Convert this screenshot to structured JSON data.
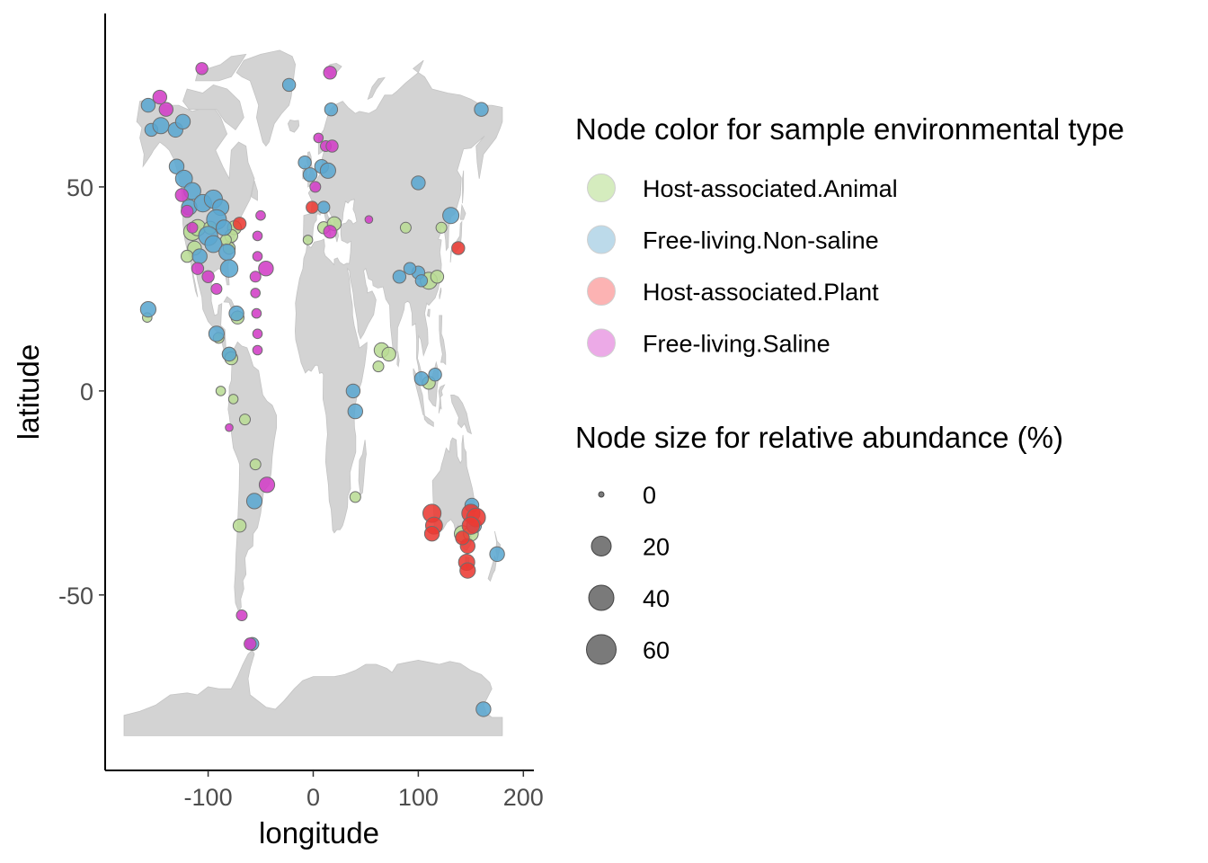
{
  "chart_data": {
    "type": "scatter",
    "subtype": "world map bubble plot",
    "xlabel": "longitude",
    "ylabel": "latitude",
    "xlim": [
      -198,
      210
    ],
    "ylim": [
      -93,
      92.5
    ],
    "xticks": [
      -100,
      0,
      100,
      200
    ],
    "xtick_labels": [
      "-100",
      "0",
      "100",
      "200"
    ],
    "yticks": [
      -50,
      0,
      50
    ],
    "ytick_labels": [
      "-50",
      "0",
      "50"
    ],
    "grid": false,
    "land_color": "#d3d3d3",
    "legend_position": "right",
    "color_legend": {
      "title": "Node color for sample environmental type",
      "entries": [
        {
          "label": "Host-associated.Animal",
          "color": "#c7e5a8"
        },
        {
          "label": "Free-living.Non-saline",
          "color": "#a6cee3"
        },
        {
          "label": "Host-associated.Plant",
          "color": "#fb9a99"
        },
        {
          "label": "Free-living.Saline",
          "color": "#e58ddf"
        }
      ]
    },
    "size_legend": {
      "title": "Node size for relative abundance (%)",
      "entries": [
        {
          "label": "0",
          "value": 0
        },
        {
          "label": "20",
          "value": 20
        },
        {
          "label": "40",
          "value": 40
        },
        {
          "label": "60",
          "value": 60
        }
      ]
    },
    "series": [
      {
        "name": "Host-associated.Animal",
        "fill": "#b9dc95",
        "points": [
          [
            -115,
            39,
            22
          ],
          [
            -110,
            40,
            18
          ],
          [
            -113,
            35,
            12
          ],
          [
            -120,
            33,
            8
          ],
          [
            -98,
            40,
            10
          ],
          [
            -75,
            40,
            12
          ],
          [
            -78,
            38,
            10
          ],
          [
            -80,
            35,
            8
          ],
          [
            -83,
            37,
            6
          ],
          [
            -72,
            18,
            10
          ],
          [
            -80,
            9,
            12
          ],
          [
            -78,
            8,
            10
          ],
          [
            -90,
            13,
            6
          ],
          [
            -88,
            0,
            4
          ],
          [
            -76,
            -2,
            4
          ],
          [
            -65,
            -7,
            6
          ],
          [
            -55,
            -18,
            6
          ],
          [
            -70,
            -33,
            10
          ],
          [
            -158,
            18,
            4
          ],
          [
            10,
            40,
            8
          ],
          [
            20,
            41,
            12
          ],
          [
            -5,
            37,
            4
          ],
          [
            40,
            -26,
            6
          ],
          [
            65,
            10,
            14
          ],
          [
            72,
            9,
            12
          ],
          [
            62,
            6,
            6
          ],
          [
            110,
            27,
            20
          ],
          [
            88,
            40,
            6
          ],
          [
            122,
            40,
            6
          ],
          [
            142,
            -35,
            18
          ],
          [
            150,
            -35,
            14
          ],
          [
            110,
            2,
            10
          ],
          [
            118,
            28,
            10
          ]
        ]
      },
      {
        "name": "Free-living.Non-saline",
        "fill": "#5ba7d0",
        "points": [
          [
            -157,
            70,
            12
          ],
          [
            -154,
            64,
            10
          ],
          [
            -145,
            65,
            18
          ],
          [
            -131,
            64,
            14
          ],
          [
            -130,
            55,
            14
          ],
          [
            -123,
            52,
            20
          ],
          [
            -115,
            49,
            20
          ],
          [
            -118,
            45,
            16
          ],
          [
            -105,
            46,
            22
          ],
          [
            -95,
            47,
            24
          ],
          [
            -88,
            45,
            18
          ],
          [
            -92,
            42,
            30
          ],
          [
            -100,
            38,
            28
          ],
          [
            -108,
            33,
            14
          ],
          [
            -95,
            36,
            20
          ],
          [
            -82,
            34,
            18
          ],
          [
            -80,
            30,
            22
          ],
          [
            -85,
            40,
            16
          ],
          [
            -92,
            14,
            16
          ],
          [
            -80,
            9,
            12
          ],
          [
            -73,
            19,
            14
          ],
          [
            -157,
            20,
            16
          ],
          [
            -23,
            75,
            10
          ],
          [
            17,
            69,
            10
          ],
          [
            -8,
            56,
            10
          ],
          [
            -3,
            53,
            12
          ],
          [
            8,
            55,
            12
          ],
          [
            14,
            54,
            16
          ],
          [
            10,
            45,
            8
          ],
          [
            100,
            51,
            12
          ],
          [
            131,
            43,
            18
          ],
          [
            160,
            69,
            12
          ],
          [
            100,
            29,
            10
          ],
          [
            103,
            27,
            8
          ],
          [
            82,
            28,
            10
          ],
          [
            92,
            30,
            8
          ],
          [
            103,
            3,
            12
          ],
          [
            116,
            4,
            10
          ],
          [
            38,
            0,
            12
          ],
          [
            40,
            -5,
            14
          ],
          [
            -56,
            -27,
            16
          ],
          [
            -124,
            66,
            14
          ],
          [
            151,
            -28,
            12
          ],
          [
            153,
            -33,
            14
          ],
          [
            175,
            -40,
            14
          ],
          [
            162,
            -78,
            14
          ],
          [
            -58,
            -62,
            10
          ]
        ]
      },
      {
        "name": "Host-associated.Plant",
        "fill": "#ea3a33",
        "points": [
          [
            -70,
            41,
            10
          ],
          [
            -1,
            45,
            8
          ],
          [
            138,
            35,
            10
          ],
          [
            113,
            -30,
            24
          ],
          [
            115,
            -33,
            20
          ],
          [
            113,
            -35,
            14
          ],
          [
            150,
            -30,
            24
          ],
          [
            155,
            -31,
            26
          ],
          [
            150,
            -33,
            22
          ],
          [
            147,
            -38,
            14
          ],
          [
            146,
            -42,
            18
          ],
          [
            147,
            -44,
            16
          ],
          [
            142,
            -36,
            12
          ]
        ]
      },
      {
        "name": "Free-living.Saline",
        "fill": "#d13ec6",
        "points": [
          [
            -106,
            79,
            8
          ],
          [
            16,
            78,
            10
          ],
          [
            -140,
            69,
            12
          ],
          [
            -125,
            48,
            10
          ],
          [
            -120,
            44,
            8
          ],
          [
            -115,
            40,
            6
          ],
          [
            -110,
            30,
            8
          ],
          [
            -100,
            28,
            8
          ],
          [
            -92,
            25,
            6
          ],
          [
            -50,
            43,
            4
          ],
          [
            -53,
            38,
            4
          ],
          [
            -53,
            33,
            4
          ],
          [
            -55,
            28,
            6
          ],
          [
            -55,
            24,
            4
          ],
          [
            -54,
            19,
            4
          ],
          [
            -53,
            14,
            4
          ],
          [
            -53,
            10,
            4
          ],
          [
            -45,
            30,
            14
          ],
          [
            5,
            62,
            4
          ],
          [
            12,
            60,
            6
          ],
          [
            18,
            60,
            8
          ],
          [
            2,
            50,
            6
          ],
          [
            16,
            39,
            10
          ],
          [
            53,
            42,
            2
          ],
          [
            -80,
            -9,
            2
          ],
          [
            -68,
            -55,
            6
          ],
          [
            -44,
            -23,
            16
          ],
          [
            -60,
            -62,
            8
          ],
          [
            -146,
            72,
            12
          ]
        ]
      }
    ]
  }
}
